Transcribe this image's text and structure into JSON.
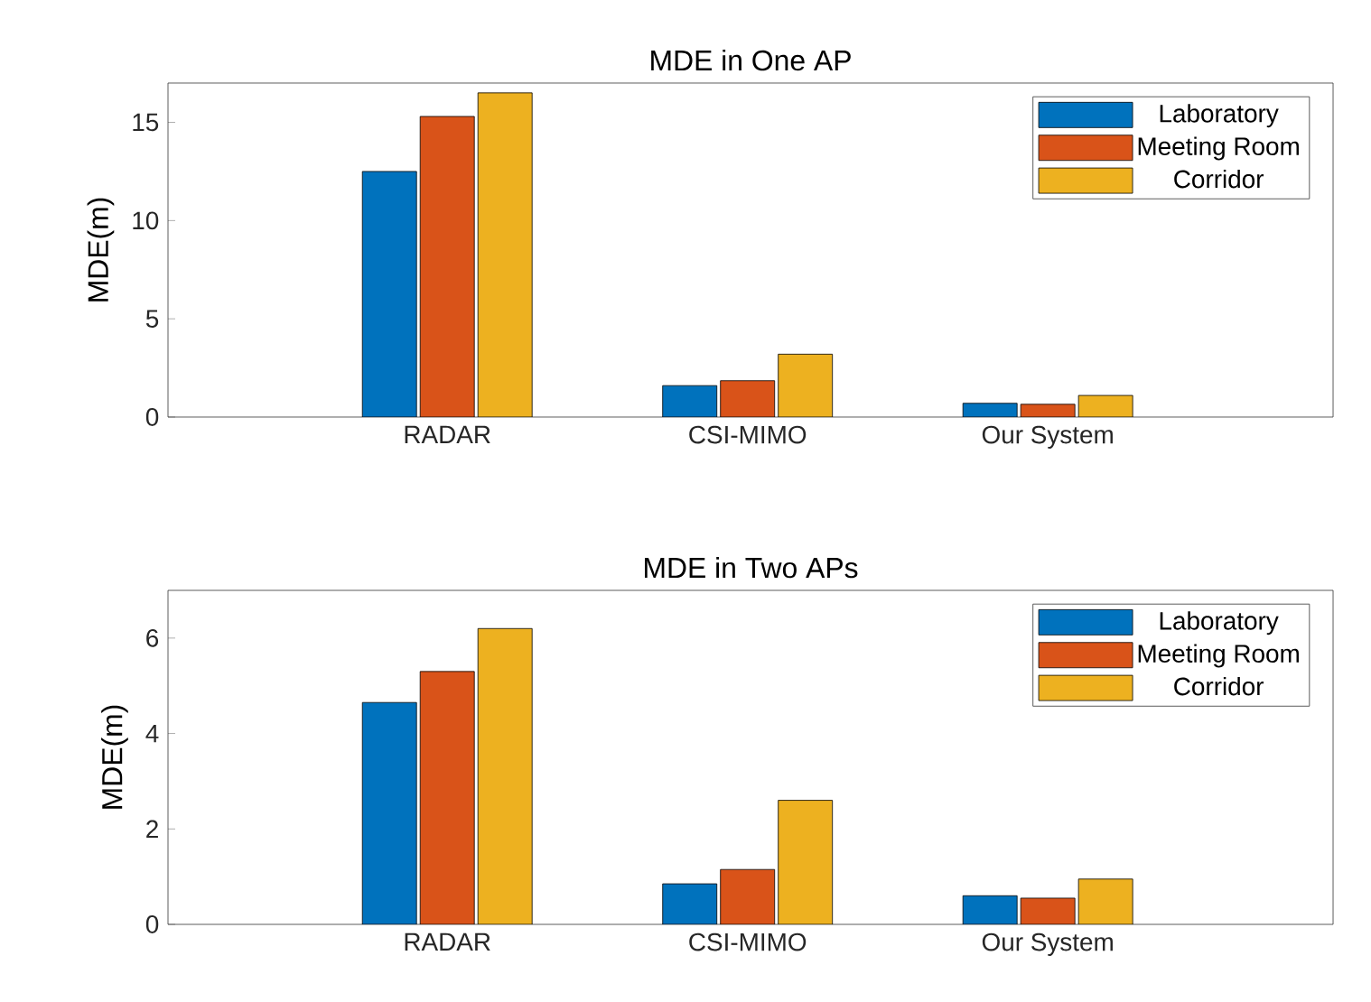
{
  "chart_data": [
    {
      "type": "bar",
      "title": "MDE in One AP",
      "ylabel": "MDE(m)",
      "categories": [
        "RADAR",
        "CSI-MIMO",
        "Our System"
      ],
      "series": [
        {
          "name": "Laboratory",
          "color": "#0072bd",
          "values": [
            12.5,
            1.6,
            0.7
          ]
        },
        {
          "name": "Meeting Room",
          "color": "#d95319",
          "values": [
            15.3,
            1.85,
            0.65
          ]
        },
        {
          "name": "Corridor",
          "color": "#edb120",
          "values": [
            16.5,
            3.2,
            1.1
          ]
        }
      ],
      "ylim": [
        0,
        17
      ],
      "yticks": [
        0,
        5,
        10,
        15
      ],
      "legend": "top right",
      "grid": false
    },
    {
      "type": "bar",
      "title": "MDE in Two APs",
      "ylabel": "MDE(m)",
      "categories": [
        "RADAR",
        "CSI-MIMO",
        "Our System"
      ],
      "series": [
        {
          "name": "Laboratory",
          "color": "#0072bd",
          "values": [
            4.65,
            0.85,
            0.6
          ]
        },
        {
          "name": "Meeting Room",
          "color": "#d95319",
          "values": [
            5.3,
            1.15,
            0.55
          ]
        },
        {
          "name": "Corridor",
          "color": "#edb120",
          "values": [
            6.2,
            2.6,
            0.95
          ]
        }
      ],
      "ylim": [
        0,
        7
      ],
      "yticks": [
        0,
        2,
        4,
        6
      ],
      "legend": "top right",
      "grid": false
    }
  ]
}
